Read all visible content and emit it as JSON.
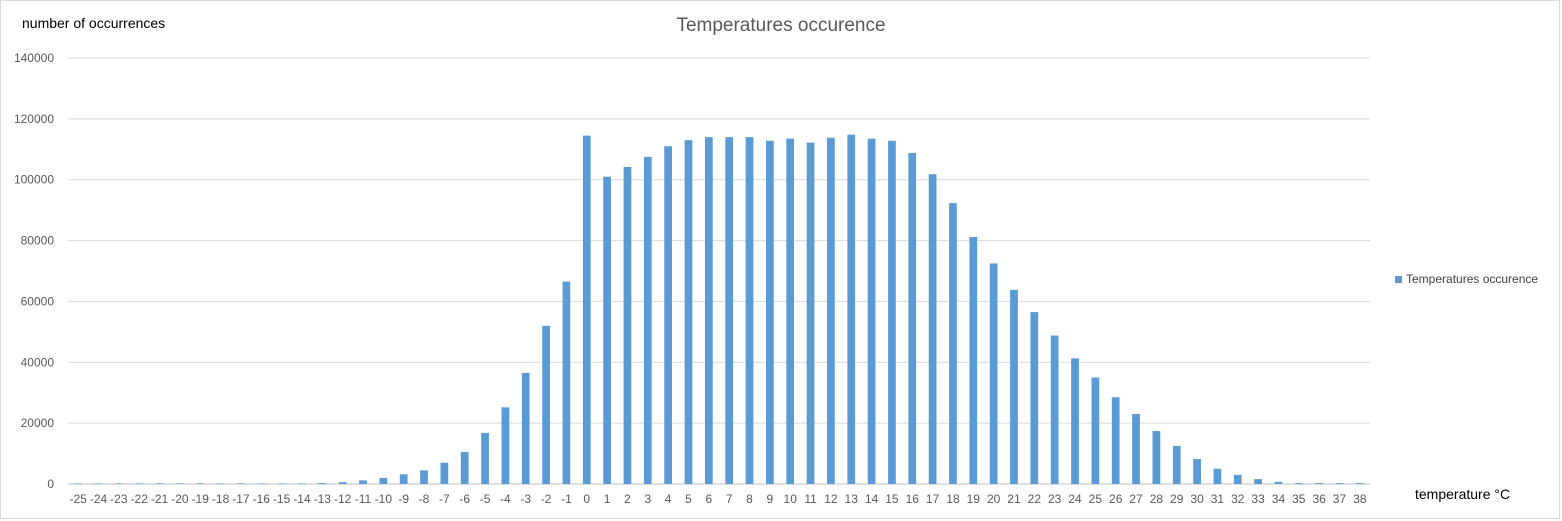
{
  "chart_data": {
    "type": "bar",
    "title": "Temperatures occurence",
    "ylabel": "number of occurrences",
    "xlabel": "temperature °C",
    "ylim": [
      0,
      140000
    ],
    "yticks": [
      0,
      20000,
      40000,
      60000,
      80000,
      100000,
      120000,
      140000
    ],
    "grid": true,
    "legend_position": "right",
    "bar_color": "#5b9bd5",
    "categories": [
      "-25",
      "-24",
      "-23",
      "-22",
      "-21",
      "-20",
      "-19",
      "-18",
      "-17",
      "-16",
      "-15",
      "-14",
      "-13",
      "-12",
      "-11",
      "-10",
      "-9",
      "-8",
      "-7",
      "-6",
      "-5",
      "-4",
      "-3",
      "-2",
      "-1",
      "0",
      "1",
      "2",
      "3",
      "4",
      "5",
      "6",
      "7",
      "8",
      "9",
      "10",
      "11",
      "12",
      "13",
      "14",
      "15",
      "16",
      "17",
      "18",
      "19",
      "20",
      "21",
      "22",
      "23",
      "24",
      "25",
      "26",
      "27",
      "28",
      "29",
      "30",
      "31",
      "32",
      "33",
      "34",
      "35",
      "36",
      "37",
      "38"
    ],
    "series": [
      {
        "name": "Temperatures occurence",
        "values": [
          200,
          200,
          200,
          200,
          200,
          200,
          200,
          200,
          200,
          200,
          200,
          200,
          300,
          600,
          1200,
          2000,
          3200,
          4500,
          7000,
          10500,
          16800,
          25200,
          36500,
          52000,
          66500,
          114500,
          101000,
          104200,
          107500,
          111000,
          113000,
          114000,
          114000,
          114000,
          112800,
          113500,
          112200,
          113800,
          114800,
          113500,
          112800,
          108800,
          101800,
          92300,
          81200,
          72500,
          63800,
          56500,
          48800,
          41300,
          35000,
          28500,
          23000,
          17400,
          12500,
          8200,
          5000,
          3000,
          1600,
          700,
          300,
          300,
          300,
          300
        ]
      }
    ]
  }
}
